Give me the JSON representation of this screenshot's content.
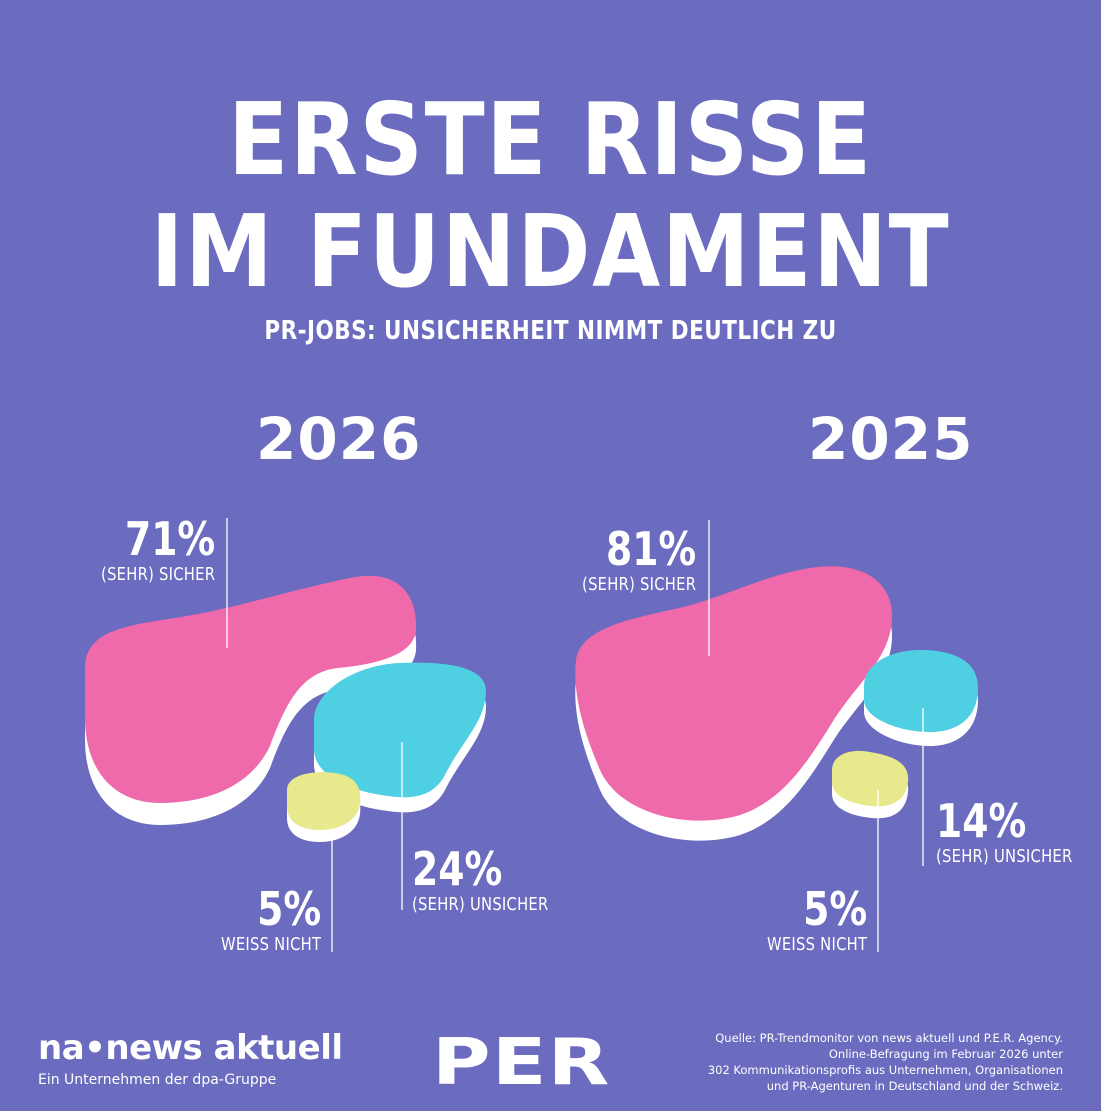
{
  "header": {
    "title_line1": "ERSTE RISSE",
    "title_line2": "IM FUNDAMENT",
    "subtitle": "PR-JOBS: UNSICHERHEIT NIMMT DEUTLICH ZU"
  },
  "colors": {
    "background": "#6b6bbf",
    "sicher": "#ee6aab",
    "unsicher": "#4fd0e2",
    "weiss_nicht": "#e8e88c",
    "text": "#ffffff"
  },
  "chart_data": [
    {
      "type": "pie",
      "year": "2026",
      "categories": [
        "(SEHR) SICHER",
        "(SEHR) UNSICHER",
        "WEISS NICHT"
      ],
      "values": [
        71,
        24,
        5
      ],
      "labels": [
        "71%",
        "24%",
        "5%"
      ]
    },
    {
      "type": "pie",
      "year": "2025",
      "categories": [
        "(SEHR) SICHER",
        "(SEHR) UNSICHER",
        "WEISS NICHT"
      ],
      "values": [
        81,
        14,
        5
      ],
      "labels": [
        "81%",
        "14%",
        "5%"
      ]
    }
  ],
  "footer": {
    "logo_na": "na•news aktuell",
    "logo_na_sub": "Ein Unternehmen der dpa-Gruppe",
    "logo_per": "PER",
    "source_lines": [
      "Quelle: PR-Trendmonitor von news aktuell und P.E.R. Agency.",
      "Online-Befragung im Februar 2026 unter",
      "302 Kommunikationsprofis aus Unternehmen, Organisationen",
      "und PR-Agenturen in Deutschland und der Schweiz."
    ]
  }
}
